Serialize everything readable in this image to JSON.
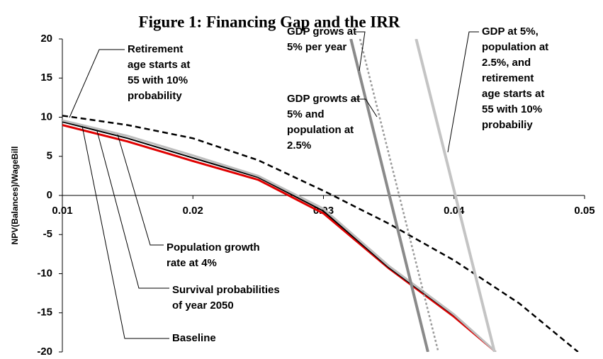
{
  "chart_data": {
    "type": "line",
    "title": "Figure 1:  Financing Gap and the IRR",
    "y_label": "NPV(Balances)/WageBill",
    "xlim": [
      0.01,
      0.05
    ],
    "xticks": [
      0.01,
      0.02,
      0.03,
      0.04,
      0.05
    ],
    "ylim": [
      -20,
      20
    ],
    "yticks": [
      -20,
      -15,
      -10,
      -5,
      0,
      5,
      10,
      15,
      20
    ],
    "grid": false,
    "series": [
      {
        "color": "#e00000",
        "style": "solid",
        "width": 3,
        "x": [
          0.01,
          0.015,
          0.02,
          0.025,
          0.03,
          0.035,
          0.04,
          0.0432
        ],
        "values": [
          9.0,
          6.9,
          4.4,
          2.0,
          -2.3,
          -9.3,
          -15.5,
          -20
        ]
      },
      {
        "color": "#000000",
        "style": "solid",
        "width": 2,
        "x": [
          0.01,
          0.015,
          0.02,
          0.025,
          0.03,
          0.035,
          0.04,
          0.0432
        ],
        "values": [
          9.4,
          7.3,
          4.8,
          2.3,
          -2.0,
          -9.2,
          -15.3,
          -20
        ]
      },
      {
        "color": "#bdbdbd",
        "style": "solid",
        "width": 3,
        "x": [
          0.01,
          0.015,
          0.02,
          0.025,
          0.03,
          0.035,
          0.04,
          0.0432
        ],
        "values": [
          9.6,
          7.6,
          5.1,
          2.5,
          -1.7,
          -9.0,
          -15.2,
          -20
        ]
      },
      {
        "color": "#000000",
        "style": "dashed",
        "width": 2.5,
        "x": [
          0.01,
          0.015,
          0.02,
          0.025,
          0.03,
          0.035,
          0.04,
          0.045,
          0.0495
        ],
        "values": [
          10.2,
          9.0,
          7.3,
          4.5,
          0.6,
          -3.6,
          -8.3,
          -13.8,
          -20
        ]
      },
      {
        "color": "#8a8a8a",
        "style": "solid",
        "width": 4,
        "x": [
          0.0321,
          0.038
        ],
        "values": [
          20,
          -20
        ]
      },
      {
        "color": "#9a9a9a",
        "style": "dotted",
        "width": 2.5,
        "x": [
          0.0328,
          0.0388
        ],
        "values": [
          20,
          -20
        ]
      },
      {
        "color": "#c4c4c4",
        "style": "solid",
        "width": 4,
        "x": [
          0.0371,
          0.0431
        ],
        "values": [
          20,
          -20
        ]
      }
    ],
    "annotations": [
      {
        "lines": [
          "Retirement",
          "age starts at",
          "55 with 10%",
          "probability"
        ]
      },
      {
        "lines": [
          "GDP grows at",
          "5% per year"
        ]
      },
      {
        "lines": [
          "GDP growts at",
          "5% and",
          "population at",
          "2.5%"
        ]
      },
      {
        "lines": [
          "GDP at 5%,",
          "population at",
          "2.5%, and",
          "retirement",
          "age starts at",
          "55 with 10%",
          "probabiliy"
        ]
      },
      {
        "lines": [
          "Population growth",
          "rate at 4%"
        ]
      },
      {
        "lines": [
          "Survival probabilities",
          "of year 2050"
        ]
      },
      {
        "lines": [
          "Baseline"
        ]
      }
    ]
  }
}
